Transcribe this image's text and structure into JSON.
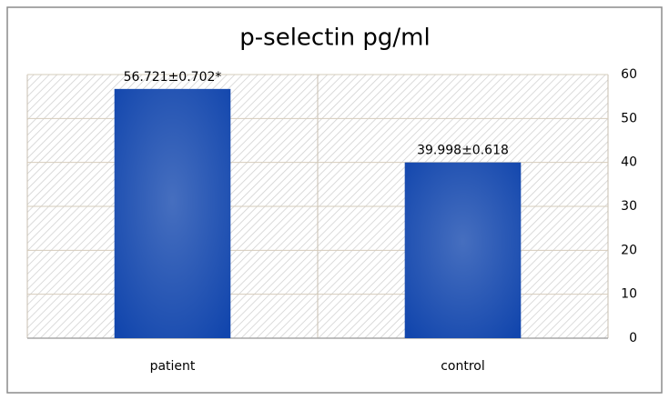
{
  "chart_data": {
    "type": "bar",
    "title": "p-selectin pg/ml",
    "categories": [
      "patient",
      "control"
    ],
    "values": [
      56.721,
      39.998
    ],
    "value_labels": [
      "56.721±0.702*",
      "39.998±0.618"
    ],
    "color": "#1246ad",
    "ylim": [
      0,
      60
    ],
    "yticks": [
      0,
      10,
      20,
      30,
      40,
      50,
      60
    ],
    "grid": true
  }
}
